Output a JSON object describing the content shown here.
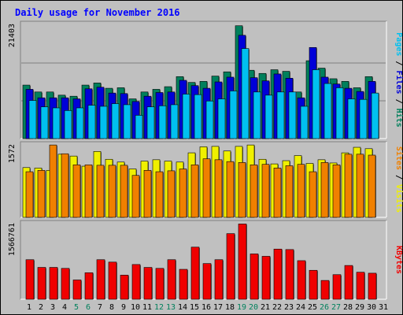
{
  "chart_data": [
    {
      "type": "bar",
      "title": "Daily usage for November 2016",
      "panel": "top",
      "ymax_label": "21403",
      "axis_label_parts": [
        "Pages",
        "Files",
        "Hits"
      ],
      "axis_label_separator": " / ",
      "categories": [
        "1",
        "2",
        "3",
        "4",
        "5",
        "6",
        "7",
        "8",
        "9",
        "10",
        "11",
        "12",
        "13",
        "14",
        "15",
        "16",
        "17",
        "18",
        "19",
        "20",
        "21",
        "22",
        "23",
        "24",
        "25",
        "26",
        "27",
        "28",
        "29",
        "30",
        "31"
      ],
      "ylim": [
        0,
        21403
      ],
      "series": [
        {
          "name": "Hits",
          "color": "#00805c",
          "values": [
            10100,
            8800,
            8800,
            8200,
            8000,
            10100,
            10500,
            9500,
            9600,
            7500,
            8800,
            9300,
            9800,
            11700,
            10600,
            10800,
            11800,
            12600,
            21300,
            12900,
            12300,
            13000,
            12700,
            8800,
            14700,
            13300,
            11300,
            10800,
            9600,
            11700,
            0
          ]
        },
        {
          "name": "Files",
          "color": "#0000d8",
          "values": [
            9300,
            7700,
            7700,
            7700,
            7500,
            9400,
            9700,
            8600,
            8500,
            7000,
            8000,
            8700,
            8800,
            11000,
            10000,
            9500,
            10700,
            11600,
            19500,
            11500,
            10900,
            12200,
            11400,
            7700,
            17200,
            11600,
            10300,
            9500,
            8900,
            10800,
            0
          ]
        },
        {
          "name": "Pages",
          "color": "#00c0f0",
          "values": [
            7200,
            6000,
            5800,
            5300,
            5800,
            6300,
            6100,
            6600,
            6400,
            4400,
            6000,
            6200,
            6400,
            8400,
            8300,
            7100,
            7500,
            9000,
            17000,
            8800,
            8200,
            8800,
            8800,
            6100,
            13000,
            10400,
            9600,
            7500,
            7400,
            8600,
            0
          ]
        }
      ]
    },
    {
      "type": "bar",
      "panel": "middle",
      "ymax_label": "1572",
      "axis_label_parts": [
        "Sites",
        "Visits"
      ],
      "axis_label_separator": " / ",
      "ylim": [
        0,
        1572
      ],
      "series": [
        {
          "name": "Visits",
          "color": "#f0f000",
          "values": [
            1080,
            1070,
            1020,
            1370,
            1330,
            1110,
            1430,
            1260,
            1200,
            1050,
            1220,
            1250,
            1220,
            1200,
            1400,
            1530,
            1540,
            1440,
            1540,
            1570,
            1260,
            1160,
            1230,
            1340,
            1170,
            1250,
            1180,
            1400,
            1520,
            1490,
            0
          ]
        },
        {
          "name": "Sites",
          "color": "#f08000",
          "values": [
            990,
            1020,
            1570,
            1380,
            1140,
            1140,
            1130,
            1130,
            1130,
            910,
            1020,
            990,
            1010,
            1050,
            1140,
            1270,
            1250,
            1210,
            1190,
            1140,
            1150,
            1070,
            1120,
            1150,
            990,
            1190,
            1140,
            1370,
            1370,
            1350,
            0
          ]
        }
      ]
    },
    {
      "type": "bar",
      "panel": "bottom",
      "ymax_label": "1566761",
      "axis_label_parts": [
        "KBytes"
      ],
      "axis_label_separator": "",
      "ylim": [
        0,
        1566761
      ],
      "series": [
        {
          "name": "KBytes",
          "color": "#f00000",
          "values": [
            820000,
            660000,
            660000,
            640000,
            400000,
            550000,
            820000,
            770000,
            500000,
            720000,
            660000,
            640000,
            820000,
            620000,
            1080000,
            740000,
            820000,
            1360000,
            1560000,
            940000,
            890000,
            1040000,
            1030000,
            800000,
            600000,
            390000,
            510000,
            700000,
            560000,
            540000,
            0
          ]
        }
      ]
    }
  ],
  "x_labels": [
    "1",
    "2",
    "3",
    "4",
    "5",
    "6",
    "7",
    "8",
    "9",
    "10",
    "11",
    "12",
    "13",
    "14",
    "15",
    "16",
    "17",
    "18",
    "19",
    "20",
    "21",
    "22",
    "23",
    "24",
    "25",
    "26",
    "27",
    "28",
    "29",
    "30",
    "31"
  ],
  "weekend_days": [
    "5",
    "6",
    "12",
    "13",
    "19",
    "20",
    "26",
    "27"
  ],
  "colors": {
    "title": "#0000ff",
    "weekday_label": "#000000",
    "weekend_label": "#00805c",
    "plot_bg": "#c0c0c0",
    "frame_bg": "#c0c0c0",
    "shadow": "#606060",
    "hits": "#00805c",
    "files": "#0000d8",
    "pages": "#00c0f0",
    "visits": "#f0f000",
    "sites": "#f08000",
    "kbytes": "#f00000"
  }
}
